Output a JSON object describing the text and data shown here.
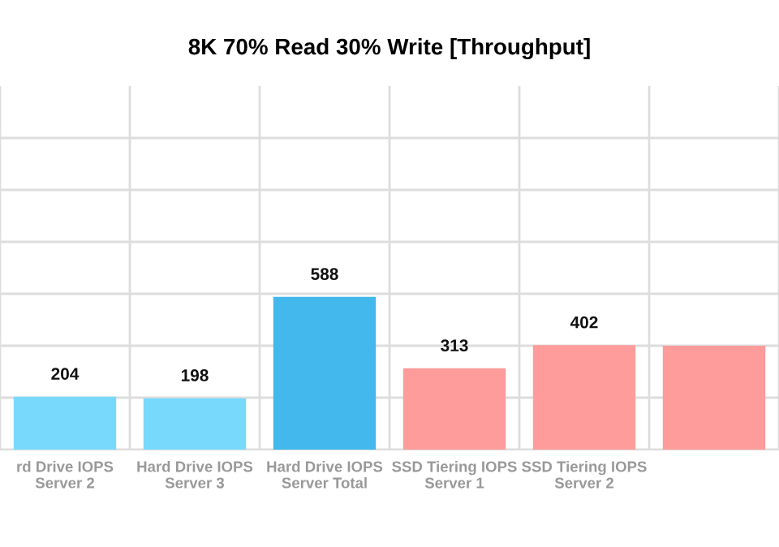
{
  "chart_data": {
    "type": "bar",
    "title": "8K 70% Read 30% Write [Throughput]",
    "categories": [
      "rd Drive IOPS\nServer 2",
      "Hard Drive IOPS\nServer 3",
      "Hard Drive IOPS\nServer Total",
      "SSD Tiering IOPS\nServer 1",
      "SSD Tiering IOPS\nServer 2",
      null
    ],
    "values": [
      204,
      198,
      588,
      313,
      402,
      400
    ],
    "value_labels": [
      "204",
      "198",
      "588",
      "313",
      "402",
      null
    ],
    "colors": [
      "#79d9fd",
      "#79d9fd",
      "#42b8ec",
      "#fe9b9b",
      "#fe9b9b",
      "#fe9b9b"
    ],
    "ylim": [
      0,
      1400
    ],
    "yticks": [
      {
        "value": 0,
        "label": null
      },
      {
        "value": 200,
        "label": null
      },
      {
        "value": 400,
        "label": null
      },
      {
        "value": 600,
        "label": null
      },
      {
        "value": 800,
        "label": null
      },
      {
        "value": 1000,
        "label": null
      },
      {
        "value": 1200,
        "label": null
      }
    ],
    "grid": true
  }
}
